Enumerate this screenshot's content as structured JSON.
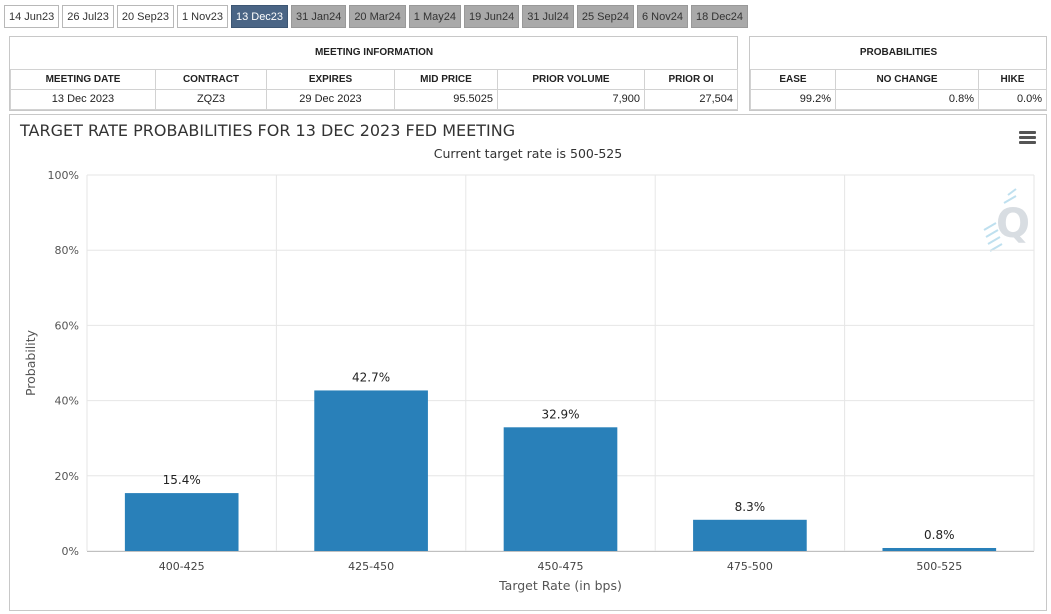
{
  "tabs": [
    {
      "label": "14 Jun23",
      "state": "past"
    },
    {
      "label": "26 Jul23",
      "state": "past"
    },
    {
      "label": "20 Sep23",
      "state": "past"
    },
    {
      "label": "1 Nov23",
      "state": "past"
    },
    {
      "label": "13 Dec23",
      "state": "active"
    },
    {
      "label": "31 Jan24",
      "state": "future"
    },
    {
      "label": "20 Mar24",
      "state": "future"
    },
    {
      "label": "1 May24",
      "state": "future"
    },
    {
      "label": "19 Jun24",
      "state": "future"
    },
    {
      "label": "31 Jul24",
      "state": "future"
    },
    {
      "label": "25 Sep24",
      "state": "future"
    },
    {
      "label": "6 Nov24",
      "state": "future"
    },
    {
      "label": "18 Dec24",
      "state": "future"
    }
  ],
  "meeting_info": {
    "title": "MEETING INFORMATION",
    "headers": {
      "meeting_date": "MEETING DATE",
      "contract": "CONTRACT",
      "expires": "EXPIRES",
      "mid_price": "MID PRICE",
      "prior_volume": "PRIOR VOLUME",
      "prior_oi": "PRIOR OI"
    },
    "row": {
      "meeting_date": "13 Dec 2023",
      "contract": "ZQZ3",
      "expires": "29 Dec 2023",
      "mid_price": "95.5025",
      "prior_volume": "7,900",
      "prior_oi": "27,504"
    }
  },
  "probabilities": {
    "title": "PROBABILITIES",
    "headers": {
      "ease": "EASE",
      "no_change": "NO CHANGE",
      "hike": "HIKE"
    },
    "row": {
      "ease": "99.2%",
      "no_change": "0.8%",
      "hike": "0.0%"
    }
  },
  "chart_data": {
    "type": "bar",
    "title": "TARGET RATE PROBABILITIES FOR 13 DEC 2023 FED MEETING",
    "subtitle": "Current target rate is 500-525",
    "xlabel": "Target Rate (in bps)",
    "ylabel": "Probability",
    "categories": [
      "400-425",
      "425-450",
      "450-475",
      "475-500",
      "500-525"
    ],
    "values": [
      15.4,
      42.7,
      32.9,
      8.3,
      0.8
    ],
    "data_labels": [
      "15.4%",
      "42.7%",
      "32.9%",
      "8.3%",
      "0.8%"
    ],
    "ylim": [
      0,
      100
    ],
    "yticks": [
      0,
      20,
      40,
      60,
      80,
      100
    ],
    "ytick_labels": [
      "0%",
      "20%",
      "40%",
      "60%",
      "80%",
      "100%"
    ],
    "grid": true,
    "bar_color": "#2980b9"
  },
  "icons": {
    "menu": "hamburger-menu-icon",
    "watermark": "cme-q-logo"
  }
}
